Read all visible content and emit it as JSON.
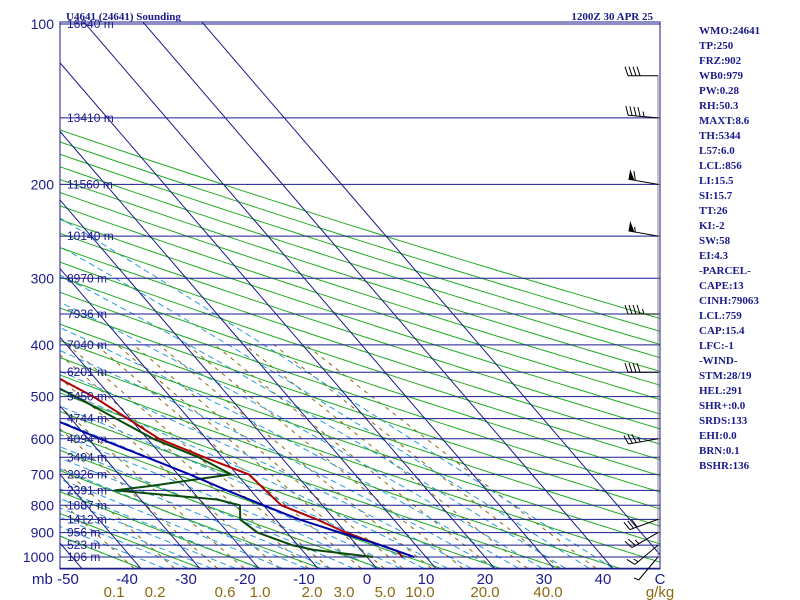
{
  "header": {
    "station": "U4641 (24641) Sounding",
    "time": "1200Z 30 APR 25"
  },
  "indices": [
    "WMO:24641",
    "TP:250",
    "FRZ:902",
    "WB0:979",
    "PW:0.28",
    "RH:50.3",
    "MAXT:8.6",
    "TH:5344",
    "L57:6.0",
    "LCL:856",
    "LI:15.5",
    "SI:15.7",
    "TT:26",
    "KI:-2",
    "SW:58",
    "EI:4.3",
    "-PARCEL-",
    "CAPE:13",
    "CINH:79063",
    "LCL:759",
    "CAP:15.4",
    "LFC:-1",
    "-WIND-",
    "STM:28/19",
    "HEL:291",
    "SHR+:0.0",
    "SRDS:133",
    "EHI:0.0",
    "BRN:0.1",
    "BSHR:136"
  ],
  "colors": {
    "axis": "#1a1a8c",
    "isobar": "#1a1a8c",
    "isotherm": "#1a1a8c",
    "dry_adiabat": "#22aa22",
    "moist_adiabat": "#2a9adf",
    "mixing_ratio": "#8a6a10",
    "temperature": "#b00000",
    "dewpoint": "#0a4a0a",
    "parcel": "#0000aa",
    "wind": "#000000"
  },
  "chart_data": {
    "type": "line",
    "title": "U4641 (24641) Sounding",
    "subtitle": "1200Z 30 APR 25",
    "y_scale": "log",
    "pressure_axis_label": "mb",
    "pressure_ticks": [
      "100",
      "200",
      "300",
      "400",
      "500",
      "600",
      "700",
      "800",
      "900",
      "1000"
    ],
    "height_labels": [
      {
        "p": 100,
        "label": "16640 m"
      },
      {
        "p": 150,
        "label": "13410 m"
      },
      {
        "p": 200,
        "label": "11560 m"
      },
      {
        "p": 250,
        "label": "10140 m"
      },
      {
        "p": 300,
        "label": "8970 m"
      },
      {
        "p": 350,
        "label": "7936 m"
      },
      {
        "p": 400,
        "label": "7040 m"
      },
      {
        "p": 450,
        "label": "6201 m"
      },
      {
        "p": 500,
        "label": "5450 m"
      },
      {
        "p": 550,
        "label": "4744 m"
      },
      {
        "p": 600,
        "label": "4094 m"
      },
      {
        "p": 650,
        "label": "3494 m"
      },
      {
        "p": 700,
        "label": "2926 m"
      },
      {
        "p": 750,
        "label": "2391 m"
      },
      {
        "p": 800,
        "label": "1887 m"
      },
      {
        "p": 850,
        "label": "1412 m"
      },
      {
        "p": 900,
        "label": "956 m"
      },
      {
        "p": 950,
        "label": "523 m"
      },
      {
        "p": 1000,
        "label": "106 m"
      }
    ],
    "temperature_ticks": [
      "-50",
      "-40",
      "-30",
      "-20",
      "-10",
      "0",
      "10",
      "20",
      "30",
      "40",
      "C"
    ],
    "mixing_ratio_ticks": [
      "0.1",
      "0.2",
      "0.6",
      "1.0",
      "2.0",
      "3.0",
      "5.0",
      "10.0",
      "20.0",
      "40.0",
      "g/kg"
    ],
    "series": [
      {
        "key": "temperature",
        "points": [
          [
            1000,
            6
          ],
          [
            975,
            6
          ],
          [
            950,
            4
          ],
          [
            925,
            2
          ],
          [
            900,
            0
          ],
          [
            850,
            -3
          ],
          [
            800,
            -7
          ],
          [
            700,
            -8
          ],
          [
            650,
            -13
          ],
          [
            600,
            -18
          ],
          [
            500,
            -23
          ],
          [
            400,
            -32
          ],
          [
            300,
            -44
          ],
          [
            250,
            -52
          ],
          [
            200,
            -53
          ],
          [
            150,
            -56
          ],
          [
            125,
            -56
          ],
          [
            100,
            -56
          ]
        ]
      },
      {
        "key": "dewpoint",
        "points": [
          [
            1000,
            1
          ],
          [
            970,
            -8
          ],
          [
            950,
            -11
          ],
          [
            900,
            -15
          ],
          [
            850,
            -16
          ],
          [
            800,
            -14
          ],
          [
            780,
            -17
          ],
          [
            750,
            -33
          ],
          [
            735,
            -26
          ],
          [
            700,
            -11
          ],
          [
            650,
            -14
          ],
          [
            600,
            -19
          ],
          [
            500,
            -26
          ],
          [
            400,
            -36
          ],
          [
            300,
            -48
          ],
          [
            250,
            -56
          ],
          [
            215,
            -58
          ],
          [
            200,
            -58
          ],
          [
            150,
            -64
          ],
          [
            125,
            -66
          ],
          [
            100,
            -68
          ]
        ]
      },
      {
        "key": "parcel",
        "points": [
          [
            1000,
            8
          ],
          [
            950,
            4
          ],
          [
            900,
            -1
          ],
          [
            850,
            -6
          ],
          [
            800,
            -10
          ],
          [
            750,
            -14
          ],
          [
            700,
            -18
          ],
          [
            600,
            -28
          ],
          [
            500,
            -39
          ],
          [
            400,
            -52
          ],
          [
            300,
            -69
          ],
          [
            250,
            -80
          ],
          [
            200,
            -91
          ],
          [
            150,
            -104
          ],
          [
            120,
            -111
          ]
        ]
      }
    ],
    "wind_barbs": [
      {
        "p": 1000,
        "speed_kt": 5,
        "dir_deg": 220
      },
      {
        "p": 950,
        "speed_kt": 15,
        "dir_deg": 230
      },
      {
        "p": 900,
        "speed_kt": 25,
        "dir_deg": 240
      },
      {
        "p": 850,
        "speed_kt": 30,
        "dir_deg": 250
      },
      {
        "p": 600,
        "speed_kt": 35,
        "dir_deg": 260
      },
      {
        "p": 450,
        "speed_kt": 40,
        "dir_deg": 270
      },
      {
        "p": 350,
        "speed_kt": 45,
        "dir_deg": 270
      },
      {
        "p": 250,
        "speed_kt": 55,
        "dir_deg": 280
      },
      {
        "p": 200,
        "speed_kt": 60,
        "dir_deg": 280
      },
      {
        "p": 150,
        "speed_kt": 45,
        "dir_deg": 275
      },
      {
        "p": 125,
        "speed_kt": 40,
        "dir_deg": 270
      }
    ]
  }
}
